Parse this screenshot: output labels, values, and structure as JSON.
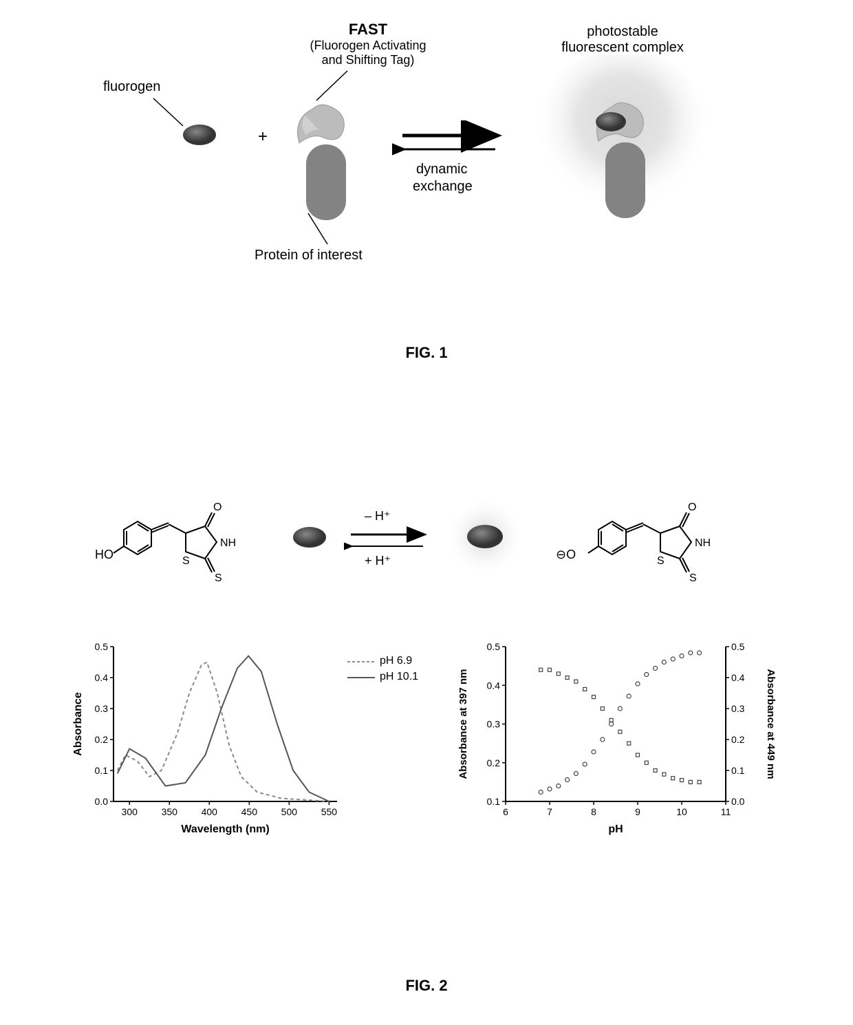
{
  "figure1": {
    "caption": "FIG. 1",
    "labels": {
      "fluorogen": "fluorogen",
      "fast_title": "FAST",
      "fast_line1": "(Fluorogen Activating",
      "fast_line2": "and Shifting Tag)",
      "complex_line1": "photostable",
      "complex_line2": "fluorescent complex",
      "dynamic_line1": "dynamic",
      "dynamic_line2": "exchange",
      "protein": "Protein of interest",
      "plus": "+"
    },
    "colors": {
      "fluorogen": "#5a5a5a",
      "fluorogen_inner": "#3a3a3a",
      "fast_tag": "#b8b8b8",
      "protein": "#808080",
      "glow_outer": "#e8e8e8",
      "glow_inner": "#c8c8c8"
    }
  },
  "figure2": {
    "caption": "FIG. 2",
    "reaction": {
      "minus_h": "– H⁺",
      "plus_h": "+ H⁺"
    },
    "chemical": {
      "ho_label": "HO",
      "o_minus_label": "O⁻",
      "o_label": "O",
      "nh_label": "NH",
      "s_label": "S"
    },
    "left_chart": {
      "xlabel": "Wavelength (nm)",
      "ylabel": "Absorbance",
      "xlim": [
        280,
        560
      ],
      "ylim": [
        0.0,
        0.5
      ],
      "xticks": [
        300,
        350,
        400,
        450,
        500,
        550
      ],
      "yticks": [
        0.0,
        0.1,
        0.2,
        0.3,
        0.4,
        0.5
      ],
      "legend": [
        {
          "label": "pH 6.9",
          "style": "dashed",
          "color": "#888888"
        },
        {
          "label": "pH 10.1",
          "style": "solid",
          "color": "#555555"
        }
      ],
      "series_ph69": [
        [
          285,
          0.1
        ],
        [
          295,
          0.15
        ],
        [
          310,
          0.13
        ],
        [
          325,
          0.08
        ],
        [
          340,
          0.1
        ],
        [
          360,
          0.22
        ],
        [
          375,
          0.35
        ],
        [
          390,
          0.44
        ],
        [
          397,
          0.45
        ],
        [
          410,
          0.35
        ],
        [
          425,
          0.18
        ],
        [
          440,
          0.08
        ],
        [
          460,
          0.03
        ],
        [
          490,
          0.01
        ],
        [
          550,
          0.0
        ]
      ],
      "series_ph101": [
        [
          285,
          0.09
        ],
        [
          300,
          0.17
        ],
        [
          320,
          0.14
        ],
        [
          345,
          0.05
        ],
        [
          370,
          0.06
        ],
        [
          395,
          0.15
        ],
        [
          415,
          0.3
        ],
        [
          435,
          0.43
        ],
        [
          449,
          0.47
        ],
        [
          465,
          0.42
        ],
        [
          485,
          0.25
        ],
        [
          505,
          0.1
        ],
        [
          525,
          0.03
        ],
        [
          550,
          0.0
        ]
      ],
      "line_width": 2,
      "bg": "#ffffff",
      "axis_color": "#000000"
    },
    "right_chart": {
      "xlabel": "pH",
      "ylabel_left": "Absorbance at 397 nm",
      "ylabel_right": "Absorbance at 449 nm",
      "xlim": [
        6,
        11
      ],
      "ylim_left": [
        0.1,
        0.5
      ],
      "ylim_right": [
        0.0,
        0.5
      ],
      "xticks": [
        6,
        7,
        8,
        9,
        10,
        11
      ],
      "yticks_left": [
        0.1,
        0.2,
        0.3,
        0.4,
        0.5
      ],
      "yticks_right": [
        0.0,
        0.1,
        0.2,
        0.3,
        0.4,
        0.5
      ],
      "marker_size": 5,
      "marker_stroke": "#404040",
      "series_397": [
        [
          6.8,
          0.44
        ],
        [
          7.0,
          0.44
        ],
        [
          7.2,
          0.43
        ],
        [
          7.4,
          0.42
        ],
        [
          7.6,
          0.41
        ],
        [
          7.8,
          0.39
        ],
        [
          8.0,
          0.37
        ],
        [
          8.2,
          0.34
        ],
        [
          8.4,
          0.31
        ],
        [
          8.6,
          0.28
        ],
        [
          8.8,
          0.25
        ],
        [
          9.0,
          0.22
        ],
        [
          9.2,
          0.2
        ],
        [
          9.4,
          0.18
        ],
        [
          9.6,
          0.17
        ],
        [
          9.8,
          0.16
        ],
        [
          10.0,
          0.155
        ],
        [
          10.2,
          0.15
        ],
        [
          10.4,
          0.15
        ]
      ],
      "series_449": [
        [
          6.8,
          0.03
        ],
        [
          7.0,
          0.04
        ],
        [
          7.2,
          0.05
        ],
        [
          7.4,
          0.07
        ],
        [
          7.6,
          0.09
        ],
        [
          7.8,
          0.12
        ],
        [
          8.0,
          0.16
        ],
        [
          8.2,
          0.2
        ],
        [
          8.4,
          0.25
        ],
        [
          8.6,
          0.3
        ],
        [
          8.8,
          0.34
        ],
        [
          9.0,
          0.38
        ],
        [
          9.2,
          0.41
        ],
        [
          9.4,
          0.43
        ],
        [
          9.6,
          0.45
        ],
        [
          9.8,
          0.46
        ],
        [
          10.0,
          0.47
        ],
        [
          10.2,
          0.48
        ],
        [
          10.4,
          0.48
        ]
      ],
      "bg": "#ffffff",
      "axis_color": "#000000"
    }
  }
}
